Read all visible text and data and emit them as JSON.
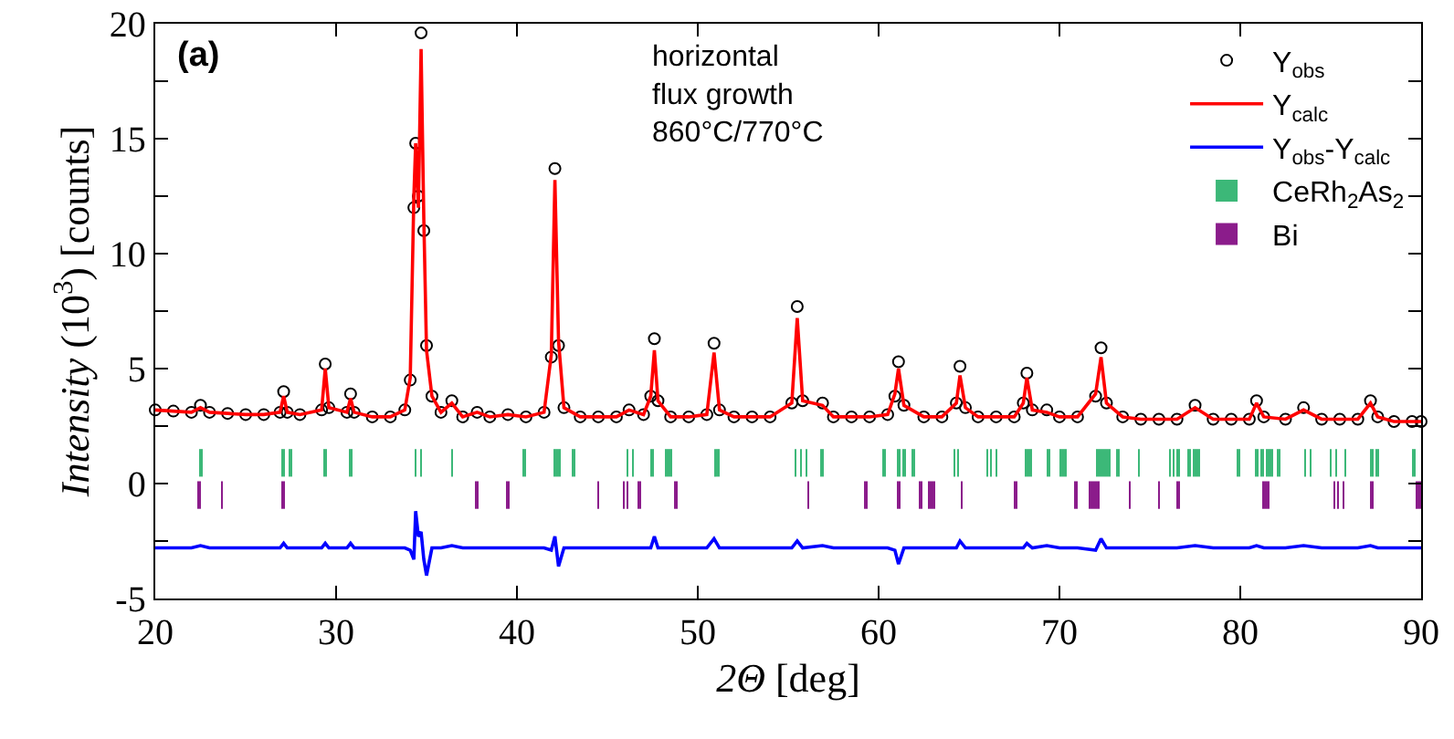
{
  "chart_data": {
    "type": "scatter",
    "xlabel": "2Θ [deg]",
    "ylabel": "Intensity (10$^{3}$) [counts]",
    "annotations": [
      "(a)",
      "horizontal\nflux growth\n860°C/770°C"
    ],
    "xlim": [
      20,
      90
    ],
    "xticks": [
      20,
      30,
      40,
      50,
      60,
      70,
      80,
      90
    ],
    "ylim": [
      -5,
      20
    ],
    "yticks": [
      -5,
      {
        "value": -2.5,
        "label": null
      },
      0,
      {
        "value": 2.5,
        "label": null
      },
      5,
      {
        "value": 7.5,
        "label": null
      },
      10,
      {
        "value": 12.5,
        "label": null
      },
      15,
      {
        "value": 17.5,
        "label": null
      },
      20
    ],
    "legend": "top right",
    "x": [
      20,
      21,
      22,
      22.5,
      23,
      24,
      25,
      26,
      26.9,
      27.1,
      27.3,
      28,
      29.2,
      29.4,
      29.6,
      30.6,
      30.8,
      31,
      32,
      33,
      33.8,
      34.1,
      34.3,
      34.4,
      34.55,
      34.7,
      34.85,
      35,
      35.3,
      35.8,
      36.4,
      37,
      37.8,
      38.5,
      39.5,
      40.5,
      41.5,
      41.9,
      42.1,
      42.3,
      42.6,
      43.5,
      44.5,
      45.5,
      46.2,
      47,
      47.4,
      47.6,
      47.8,
      48.5,
      49.5,
      50.5,
      50.9,
      51.2,
      52,
      53,
      54,
      55.2,
      55.5,
      55.8,
      56.9,
      57.5,
      58.5,
      59.5,
      60.5,
      60.9,
      61.1,
      61.4,
      62.5,
      63.5,
      64.3,
      64.5,
      64.8,
      65.5,
      66.5,
      67.5,
      68,
      68.2,
      68.5,
      69.3,
      70,
      71,
      72,
      72.3,
      72.6,
      73.5,
      74.5,
      75.5,
      76.5,
      77.5,
      78.5,
      79.5,
      80.5,
      80.9,
      81.3,
      82.5,
      83.5,
      84.5,
      85.5,
      86.5,
      87.2,
      87.6,
      88.5,
      89.5,
      90
    ],
    "series": [
      {
        "name": "Y$_{obs}$",
        "marker": "circle",
        "color": "#000000",
        "values": [
          3.2,
          3.15,
          3.1,
          3.4,
          3.1,
          3.05,
          3,
          3,
          3.1,
          4,
          3.1,
          3,
          3.2,
          5.2,
          3.3,
          3.1,
          3.9,
          3.1,
          2.9,
          2.9,
          3.2,
          4.5,
          12,
          14.8,
          12.5,
          19.6,
          11,
          6,
          3.8,
          3.1,
          3.6,
          2.9,
          3.1,
          2.9,
          3,
          2.9,
          3.1,
          5.5,
          13.7,
          6,
          3.3,
          2.9,
          2.9,
          2.9,
          3.2,
          3,
          3.8,
          6.3,
          3.6,
          2.9,
          2.9,
          3,
          6.1,
          3.2,
          2.9,
          2.9,
          2.9,
          3.5,
          7.7,
          3.6,
          3.5,
          2.9,
          2.9,
          2.9,
          3,
          3.8,
          5.3,
          3.4,
          2.9,
          2.9,
          3.5,
          5.1,
          3.3,
          2.9,
          2.9,
          2.9,
          3.5,
          4.8,
          3.2,
          3.2,
          2.9,
          2.9,
          3.8,
          5.9,
          3.5,
          2.9,
          2.8,
          2.8,
          2.8,
          3.4,
          2.8,
          2.8,
          2.8,
          3.6,
          2.9,
          2.8,
          3.3,
          2.8,
          2.8,
          2.8,
          3.6,
          2.9,
          2.7,
          2.7,
          2.7
        ]
      },
      {
        "name": "Y$_{calc}$",
        "type": "line",
        "marker": "none",
        "color": "#ff0000",
        "values": [
          3.2,
          3.15,
          3.1,
          3.3,
          3.1,
          3.05,
          3,
          3,
          3.1,
          3.8,
          3.1,
          3,
          3.2,
          5,
          3.3,
          3.1,
          3.7,
          3.1,
          2.9,
          2.9,
          3.2,
          4.6,
          12.5,
          14.8,
          12,
          18.9,
          11.5,
          5.8,
          3.8,
          3.1,
          3.5,
          2.9,
          3.1,
          2.9,
          3,
          2.9,
          3.1,
          5.6,
          13.2,
          6.2,
          3.3,
          2.9,
          2.9,
          2.9,
          3.2,
          3,
          3.8,
          5.8,
          3.6,
          2.9,
          2.9,
          3,
          5.7,
          3.2,
          2.9,
          2.9,
          2.9,
          3.5,
          7.2,
          3.6,
          3.4,
          2.9,
          2.9,
          2.9,
          3,
          3.9,
          5,
          3.4,
          2.9,
          2.9,
          3.5,
          4.7,
          3.3,
          2.9,
          2.9,
          2.9,
          3.5,
          4.6,
          3.2,
          3.1,
          2.9,
          2.9,
          3.9,
          5.5,
          3.5,
          2.9,
          2.8,
          2.8,
          2.8,
          3.3,
          2.8,
          2.8,
          2.8,
          3.5,
          2.9,
          2.8,
          3.2,
          2.8,
          2.8,
          2.8,
          3.5,
          2.9,
          2.7,
          2.7,
          2.7
        ]
      },
      {
        "name": "Y$_{obs}$-Y$_{calc}$",
        "type": "line",
        "marker": "none",
        "color": "#0000ff",
        "values": [
          -2.8,
          -2.8,
          -2.8,
          -2.7,
          -2.8,
          -2.8,
          -2.8,
          -2.8,
          -2.8,
          -2.6,
          -2.8,
          -2.8,
          -2.8,
          -2.6,
          -2.8,
          -2.8,
          -2.6,
          -2.8,
          -2.8,
          -2.8,
          -2.8,
          -2.9,
          -3.3,
          -1.2,
          -2.3,
          -2.1,
          -3.3,
          -4,
          -2.8,
          -2.8,
          -2.7,
          -2.8,
          -2.8,
          -2.8,
          -2.8,
          -2.8,
          -2.8,
          -2.9,
          -2.3,
          -3.6,
          -2.8,
          -2.8,
          -2.8,
          -2.8,
          -2.8,
          -2.8,
          -2.8,
          -2.3,
          -2.8,
          -2.8,
          -2.8,
          -2.8,
          -2.4,
          -2.8,
          -2.8,
          -2.8,
          -2.8,
          -2.8,
          -2.5,
          -2.8,
          -2.7,
          -2.8,
          -2.8,
          -2.8,
          -2.8,
          -2.9,
          -3.5,
          -2.8,
          -2.8,
          -2.8,
          -2.8,
          -2.5,
          -2.8,
          -2.8,
          -2.8,
          -2.8,
          -2.8,
          -2.6,
          -2.8,
          -2.7,
          -2.8,
          -2.8,
          -2.9,
          -2.4,
          -2.8,
          -2.8,
          -2.8,
          -2.8,
          -2.8,
          -2.7,
          -2.8,
          -2.8,
          -2.8,
          -2.7,
          -2.8,
          -2.8,
          -2.7,
          -2.8,
          -2.8,
          -2.8,
          -2.7,
          -2.8,
          -2.8,
          -2.8,
          -2.8
        ]
      },
      {
        "name": "CeRh$_{2}$As$_{2}$",
        "type": "bar",
        "color": "#3cb878",
        "x": [
          22.5,
          27.1,
          27.5,
          29.4,
          30.8,
          34.4,
          34.7,
          36.4,
          40.4,
          42.1,
          42.3,
          43.1,
          46.1,
          46.4,
          47.5,
          48.3,
          48.5,
          50.95,
          51.12,
          55.4,
          55.7,
          56.0,
          56.9,
          60.3,
          61.1,
          61.4,
          61.9,
          64.2,
          64.4,
          66.0,
          66.2,
          66.5,
          68.2,
          68.4,
          69.4,
          70.1,
          70.3,
          72.1,
          72.3,
          72.5,
          72.7,
          73.2,
          74.4,
          76.1,
          76.3,
          76.6,
          77.2,
          77.5,
          77.7,
          79.9,
          80.9,
          81.2,
          81.5,
          81.7,
          82.1,
          83.6,
          83.9,
          85.0,
          85.3,
          85.8,
          87.3,
          87.6,
          89.6
        ],
        "base": [
          0.3,
          0.3,
          0.3,
          0.3,
          0.3,
          0.3,
          0.3,
          0.3,
          0.3,
          0.3,
          0.3,
          0.3,
          0.3,
          0.3,
          0.3,
          0.3,
          0.3,
          0.3,
          0.3,
          0.3,
          0.3,
          0.3,
          0.3,
          0.3,
          0.3,
          0.3,
          0.3,
          0.3,
          0.3,
          0.3,
          0.3,
          0.3,
          0.3,
          0.3,
          0.3,
          0.3,
          0.3,
          0.3,
          0.3,
          0.3,
          0.3,
          0.3,
          0.3,
          0.3,
          0.3,
          0.3,
          0.3,
          0.3,
          0.3,
          0.3,
          0.3,
          0.3,
          0.3,
          0.3,
          0.3,
          0.3,
          0.3,
          0.3,
          0.3,
          0.3,
          0.3,
          0.3,
          0.3
        ],
        "values": [
          1.2,
          1.2,
          1.2,
          1.2,
          1.2,
          1.2,
          1.2,
          1.2,
          1.2,
          1.2,
          1.2,
          1.2,
          1.2,
          1.2,
          1.2,
          1.2,
          1.2,
          1.2,
          1.2,
          1.2,
          1.2,
          1.2,
          1.2,
          1.2,
          1.2,
          1.2,
          1.2,
          1.2,
          1.2,
          1.2,
          1.2,
          1.2,
          1.2,
          1.2,
          1.2,
          1.2,
          1.2,
          1.2,
          1.2,
          1.2,
          1.2,
          1.2,
          1.2,
          1.2,
          1.2,
          1.2,
          1.2,
          1.2,
          1.2,
          1.2,
          1.2,
          1.2,
          1.2,
          1.2,
          1.2,
          1.2,
          1.2,
          1.2,
          1.2,
          1.2,
          1.2,
          1.2,
          1.2
        ]
      },
      {
        "name": "Bi",
        "type": "bar",
        "color": "#8b1c8b",
        "x": [
          22.4,
          23.7,
          27.1,
          37.8,
          39.5,
          44.5,
          45.9,
          46.1,
          46.8,
          48.8,
          56.1,
          59.3,
          61.1,
          62.3,
          62.8,
          63.0,
          64.6,
          67.6,
          70.9,
          71.7,
          71.9,
          72.1,
          73.9,
          75.5,
          76.6,
          81.3,
          81.5,
          85.2,
          85.4,
          85.7,
          87.3,
          89.75,
          89.93
        ],
        "base": [
          -1.1,
          -1.1,
          -1.1,
          -1.1,
          -1.1,
          -1.1,
          -1.1,
          -1.1,
          -1.1,
          -1.1,
          -1.1,
          -1.1,
          -1.1,
          -1.1,
          -1.1,
          -1.1,
          -1.1,
          -1.1,
          -1.1,
          -1.1,
          -1.1,
          -1.1,
          -1.1,
          -1.1,
          -1.1,
          -1.1,
          -1.1,
          -1.1,
          -1.1,
          -1.1,
          -1.1,
          -1.1,
          -1.1
        ],
        "values": [
          1.2,
          1.2,
          1.2,
          1.2,
          1.2,
          1.2,
          1.2,
          1.2,
          1.2,
          1.2,
          1.2,
          1.2,
          1.2,
          1.2,
          1.2,
          1.2,
          1.2,
          1.2,
          1.2,
          1.2,
          1.2,
          1.2,
          1.2,
          1.2,
          1.2,
          1.2,
          1.2,
          1.2,
          1.2,
          1.2,
          1.2,
          1.2,
          1.2
        ]
      }
    ]
  }
}
